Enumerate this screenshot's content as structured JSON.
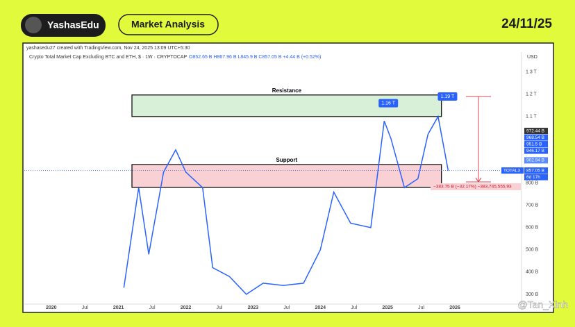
{
  "header": {
    "brand": "YashasEdu",
    "title": "Market Analysis",
    "date": "24/11/25"
  },
  "watermark": "@Tan_Xinh",
  "chart_data": {
    "type": "line",
    "subtitle": "yashasedu27 created with TradingView.com, Nov 24, 2025 13:09 UTC+5:30",
    "title": "Crypto Total Market Cap Excluding BTC and ETH, $ · 1W · CRYPTOCAP",
    "ohlc_text": "O852.65 B  H867.96 B  L845.9 B  C857.05 B  +4.44 B (+0.52%)",
    "currency": "USD",
    "color": "#2962ff",
    "x": [
      2021.08,
      2021.3,
      2021.45,
      2021.67,
      2021.85,
      2022.0,
      2022.25,
      2022.4,
      2022.65,
      2022.9,
      2023.15,
      2023.45,
      2023.75,
      2024.0,
      2024.2,
      2024.45,
      2024.75,
      2024.95,
      2025.05,
      2025.25,
      2025.45,
      2025.6,
      2025.75,
      2025.9
    ],
    "values": [
      330,
      780,
      480,
      850,
      950,
      850,
      780,
      420,
      380,
      300,
      350,
      340,
      350,
      500,
      760,
      620,
      600,
      1080,
      1000,
      780,
      820,
      1020,
      1100,
      857.05
    ],
    "xlim": [
      2019.6,
      2026.98
    ],
    "ylim": [
      256,
      1390
    ],
    "xticks": [
      2020,
      {
        "value": 2020.5,
        "label": "Jul"
      },
      2021,
      {
        "value": 2021.5,
        "label": "Jul"
      },
      2022,
      {
        "value": 2022.5,
        "label": "Jul"
      },
      2023,
      {
        "value": 2023.5,
        "label": "Jul"
      },
      2024,
      {
        "value": 2024.5,
        "label": "Jul"
      },
      2025,
      {
        "value": 2025.5,
        "label": "Jul"
      },
      2026
    ],
    "yticks": [
      {
        "value": 300,
        "label": "300 B"
      },
      {
        "value": 400,
        "label": "400 B"
      },
      {
        "value": 500,
        "label": "500 B"
      },
      {
        "value": 600,
        "label": "600 B"
      },
      {
        "value": 700,
        "label": "700 B"
      },
      {
        "value": 800,
        "label": "800 B"
      },
      {
        "value": 1100,
        "label": "1.1 T"
      },
      {
        "value": 1200,
        "label": "1.2 T"
      },
      {
        "value": 1300,
        "label": "1.3 T"
      }
    ],
    "zones": [
      {
        "label": "Resistance",
        "from": 1100,
        "to": 1197,
        "start": 2021.2,
        "end": 2025.8,
        "color": "#d8f0d8"
      },
      {
        "label": "Support",
        "from": 781,
        "to": 884,
        "start": 2021.2,
        "end": 2025.8,
        "color": "#f9d0d3"
      }
    ],
    "peaks": [
      {
        "x": 2025.0,
        "value": 1160,
        "label": "1.16 T"
      },
      {
        "x": 2025.88,
        "value": 1190,
        "label": "1.19 T"
      }
    ],
    "price_labels": [
      {
        "value": 972.44,
        "label": "972.44 B",
        "color": "#333333"
      },
      {
        "value": 968.54,
        "label": "968.54 B",
        "color": "#2962ff"
      },
      {
        "value": 951.5,
        "label": "951.5 B",
        "color": "#2962ff"
      },
      {
        "value": 946.17,
        "label": "946.17 B",
        "color": "#2962ff"
      },
      {
        "value": 902.94,
        "label": "902.94 B",
        "color": "#5b8cff"
      },
      {
        "value": 857.05,
        "label": "857.05 B",
        "color": "#2962ff"
      }
    ],
    "symbol": "TOTAL3",
    "countdown": "6d 17h",
    "measure": {
      "x": 2026.35,
      "from": 1190,
      "to": 806,
      "label": "−383.75 B (−32.17%) −383,745,555,93"
    }
  }
}
